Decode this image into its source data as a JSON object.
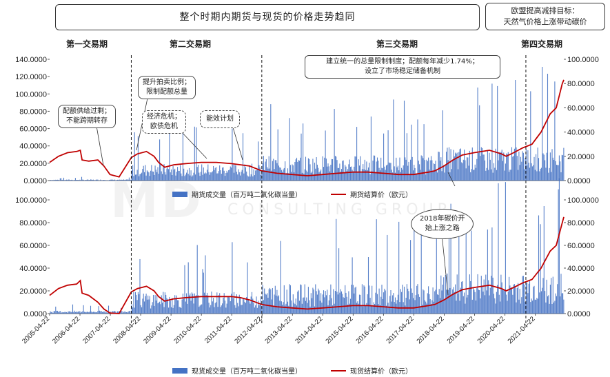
{
  "title": "整个时期内期货与现货的价格走势趋同",
  "note": {
    "line1": "欧盟提高减排目标：",
    "line2": "天然气价格上涨带动碳价"
  },
  "phases": [
    "第一交易期",
    "第二交易期",
    "第三交易期",
    "第四交易期"
  ],
  "annotations": [
    {
      "line1": "配额供给过剩；",
      "line2": "不能跨期转存"
    },
    {
      "line1": "提升拍卖比例；",
      "line2": "限制配额总量"
    },
    {
      "line1": "经济危机；",
      "line2": "欧债危机"
    },
    {
      "line1": "能效计划",
      "line2": ""
    },
    {
      "line1": "建立统一的总量限制制度；配额每年减少1.74%；",
      "line2": "设立了市场稳定储备机制"
    },
    {
      "line1": "2018年碳价开",
      "line2": "始上涨之路"
    }
  ],
  "watermark": {
    "main": "MD",
    "sub": "CONSULTING GROUP"
  },
  "legends": {
    "top_bar": "期货成交量（百万吨二氧化碳当量）",
    "top_line": "期货结算价（欧元）",
    "bottom_bar": "现货成交量（百万吨二氧化碳当量）",
    "bottom_line": "现货结算价（欧元）"
  },
  "colors": {
    "bar": "#4472C4",
    "line": "#C00000",
    "axis": "#555555"
  },
  "chart_data": [
    {
      "type": "bar+line",
      "name": "futures",
      "left_axis": {
        "ticks": [
          "0.0000",
          "20.0000",
          "40.0000",
          "60.0000",
          "80.0000",
          "100.0000",
          "120.0000",
          "140.0000"
        ],
        "range": [
          0,
          140
        ]
      },
      "right_axis": {
        "ticks": [
          "0.0000",
          "20.0000",
          "40.0000",
          "60.0000",
          "80.0000",
          "100.0000"
        ],
        "range": [
          0,
          100
        ]
      },
      "x_range": [
        2005.31,
        2022.25
      ],
      "price_series": {
        "name": "期货结算价（欧元）",
        "x": [
          2005.31,
          2005.6,
          2005.9,
          2006.2,
          2006.32,
          2006.38,
          2006.6,
          2006.9,
          2007.1,
          2007.3,
          2007.6,
          2008.0,
          2008.2,
          2008.5,
          2008.75,
          2008.9,
          2009.1,
          2009.4,
          2009.8,
          2010.3,
          2010.8,
          2011.3,
          2011.6,
          2011.9,
          2012.3,
          2012.8,
          2013.3,
          2013.8,
          2014.3,
          2014.8,
          2015.3,
          2015.8,
          2016.3,
          2016.8,
          2017.3,
          2017.8,
          2018.0,
          2018.3,
          2018.6,
          2018.9,
          2019.3,
          2019.8,
          2020.2,
          2020.35,
          2020.6,
          2020.9,
          2021.2,
          2021.5,
          2021.8,
          2022.0,
          2022.1,
          2022.2,
          2022.25
        ],
        "y": [
          15,
          20,
          23,
          24,
          25,
          17,
          16,
          17,
          12,
          5,
          3,
          19,
          22,
          24,
          20,
          15,
          11,
          13,
          14,
          15,
          15,
          14,
          13,
          12,
          8,
          6,
          5,
          4,
          5,
          6,
          7,
          7,
          6,
          5,
          5,
          7,
          8,
          12,
          17,
          21,
          23,
          25,
          22,
          20,
          23,
          27,
          30,
          40,
          55,
          60,
          70,
          80,
          83
        ]
      },
      "volume_series": {
        "name": "期货成交量（百万吨二氧化碳当量）",
        "typical_max_by_period": [
          [
            2005.31,
            2008.0,
            2
          ],
          [
            2008.0,
            2012.3,
            30
          ],
          [
            2012.3,
            2018.0,
            45
          ],
          [
            2018.0,
            2022.25,
            60
          ]
        ]
      }
    },
    {
      "type": "bar+line",
      "name": "spot",
      "left_axis": {
        "ticks": [
          "0.0000",
          "20.0000",
          "40.0000",
          "60.0000",
          "80.0000",
          "100.0000"
        ],
        "range": [
          0,
          100
        ]
      },
      "right_axis": {
        "ticks": [
          "0.0000",
          "20.0000",
          "40.0000",
          "60.0000",
          "80.0000",
          "100.0000"
        ],
        "range": [
          0,
          100
        ]
      },
      "x_range": [
        2005.31,
        2022.25
      ],
      "x_ticks": [
        "2005-04-22",
        "2006-04-22",
        "2007-04-22",
        "2008-04-22",
        "2009-04-22",
        "2010-04-22",
        "2011-04-22",
        "2012-04-22",
        "2013-04-22",
        "2014-04-22",
        "2015-04-22",
        "2016-04-22",
        "2017-04-22",
        "2018-04-22",
        "2019-04-22",
        "2020-04-22",
        "2021-04-22"
      ],
      "price_series": {
        "name": "现货结算价（欧元）",
        "x": [
          2005.31,
          2005.6,
          2005.9,
          2006.2,
          2006.32,
          2006.38,
          2006.6,
          2006.9,
          2007.1,
          2007.3,
          2007.6,
          2008.0,
          2008.2,
          2008.5,
          2008.75,
          2008.9,
          2009.1,
          2009.4,
          2009.8,
          2010.3,
          2010.8,
          2011.3,
          2011.6,
          2011.9,
          2012.3,
          2012.8,
          2013.3,
          2013.8,
          2014.3,
          2014.8,
          2015.3,
          2015.8,
          2016.3,
          2016.8,
          2017.3,
          2017.8,
          2018.0,
          2018.3,
          2018.6,
          2018.9,
          2019.3,
          2019.8,
          2020.2,
          2020.35,
          2020.6,
          2020.9,
          2021.2,
          2021.5,
          2021.8,
          2022.0,
          2022.1,
          2022.2,
          2022.25
        ],
        "y": [
          16,
          22,
          25,
          26,
          29,
          18,
          16,
          10,
          4,
          0.5,
          0,
          19,
          22,
          24,
          20,
          15,
          11,
          13,
          14,
          15,
          15,
          15,
          14,
          12,
          8,
          6,
          5,
          4,
          5,
          6,
          7,
          7,
          6,
          5,
          5,
          7,
          8,
          12,
          17,
          21,
          23,
          25,
          22,
          20,
          23,
          27,
          30,
          40,
          55,
          60,
          70,
          80,
          85
        ]
      },
      "volume_series": {
        "name": "现货成交量（百万吨二氧化碳当量）",
        "typical_max_by_period": [
          [
            2005.31,
            2008.0,
            4
          ],
          [
            2008.0,
            2012.3,
            30
          ],
          [
            2012.3,
            2018.0,
            40
          ],
          [
            2018.0,
            2022.25,
            55
          ]
        ]
      }
    }
  ]
}
